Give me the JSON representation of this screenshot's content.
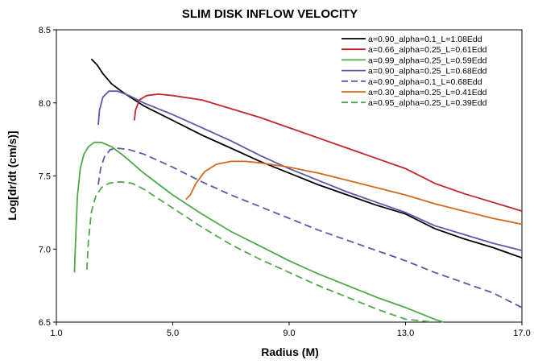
{
  "chart_data": {
    "type": "line",
    "title": "SLIM DISK INFLOW VELOCITY",
    "xlabel": "Radius (M)",
    "ylabel": "Log[dr/dt (cm/s)]",
    "xlim": [
      1.0,
      17.0
    ],
    "ylim": [
      6.5,
      8.5
    ],
    "xticks": [
      "1.0",
      "5.0",
      "9.0",
      "13.0",
      "17.0"
    ],
    "yticks": [
      "6.5",
      "7.0",
      "7.5",
      "8.0",
      "8.5"
    ],
    "grid": false,
    "legend_position": "top-right",
    "series": [
      {
        "name": "a=0.90_alpha=0.1_L=1.08Edd",
        "color": "#000000",
        "dash": false,
        "x": [
          2.2,
          2.4,
          2.6,
          2.9,
          3.3,
          4.0,
          5.0,
          6.0,
          7.0,
          8.0,
          9.0,
          10.0,
          11.0,
          12.0,
          13.0,
          14.0,
          15.0,
          16.0,
          17.0
        ],
        "y": [
          8.3,
          8.26,
          8.2,
          8.13,
          8.07,
          7.98,
          7.88,
          7.78,
          7.69,
          7.6,
          7.52,
          7.44,
          7.37,
          7.3,
          7.24,
          7.14,
          7.07,
          7.01,
          6.94
        ]
      },
      {
        "name": "a=0.66_alpha=0.25_L=0.61Edd",
        "color": "#c0272d",
        "dash": false,
        "x": [
          3.68,
          3.72,
          3.85,
          4.1,
          4.5,
          5.0,
          6.0,
          7.0,
          8.0,
          9.0,
          10.0,
          11.0,
          12.0,
          13.0,
          14.0,
          15.0,
          16.0,
          17.0
        ],
        "y": [
          7.88,
          7.95,
          8.02,
          8.05,
          8.06,
          8.05,
          8.02,
          7.96,
          7.9,
          7.83,
          7.76,
          7.69,
          7.62,
          7.55,
          7.45,
          7.38,
          7.32,
          7.26
        ]
      },
      {
        "name": "a=0.99_alpha=0.25_L=0.59Edd",
        "color": "#4fa84a",
        "dash": false,
        "x": [
          1.62,
          1.66,
          1.72,
          1.82,
          1.95,
          2.1,
          2.3,
          2.55,
          2.9,
          3.3,
          4.0,
          5.0,
          6.0,
          7.0,
          8.0,
          9.0,
          10.0,
          11.0,
          12.0,
          13.0,
          14.0,
          14.3
        ],
        "y": [
          6.84,
          7.05,
          7.35,
          7.55,
          7.65,
          7.7,
          7.73,
          7.73,
          7.7,
          7.64,
          7.52,
          7.37,
          7.24,
          7.12,
          7.02,
          6.92,
          6.83,
          6.75,
          6.67,
          6.6,
          6.52,
          6.5
        ]
      },
      {
        "name": "a=0.90_alpha=0.25_L=0.68Edd",
        "color": "#5a5aa6",
        "dash": false,
        "x": [
          2.44,
          2.48,
          2.6,
          2.8,
          3.1,
          3.5,
          4.0,
          5.0,
          6.0,
          7.0,
          8.0,
          9.0,
          10.0,
          11.0,
          12.0,
          13.0,
          14.0,
          15.0,
          16.0,
          17.0
        ],
        "y": [
          7.85,
          7.95,
          8.04,
          8.08,
          8.08,
          8.05,
          8.0,
          7.92,
          7.83,
          7.74,
          7.64,
          7.55,
          7.47,
          7.39,
          7.32,
          7.25,
          7.16,
          7.1,
          7.04,
          6.99
        ]
      },
      {
        "name": "a=0.90_alpha=0.1_L=0.68Edd",
        "color": "#5a5aa6",
        "dash": true,
        "x": [
          2.44,
          2.52,
          2.65,
          2.85,
          3.1,
          3.5,
          4.0,
          5.0,
          6.0,
          7.0,
          8.0,
          9.0,
          10.0,
          11.0,
          12.0,
          13.0,
          14.0,
          15.0,
          16.0,
          17.0
        ],
        "y": [
          7.44,
          7.55,
          7.63,
          7.68,
          7.69,
          7.68,
          7.65,
          7.56,
          7.46,
          7.37,
          7.29,
          7.21,
          7.13,
          7.06,
          6.99,
          6.92,
          6.84,
          6.77,
          6.7,
          6.6
        ]
      },
      {
        "name": "a=0.30_alpha=0.25_L=0.41Edd",
        "color": "#d2691e",
        "dash": false,
        "x": [
          5.45,
          5.6,
          5.8,
          6.1,
          6.5,
          7.0,
          7.5,
          8.0,
          9.0,
          10.0,
          11.0,
          12.0,
          13.0,
          14.0,
          15.0,
          16.0,
          17.0
        ],
        "y": [
          7.34,
          7.37,
          7.45,
          7.53,
          7.58,
          7.6,
          7.6,
          7.59,
          7.56,
          7.52,
          7.47,
          7.42,
          7.37,
          7.31,
          7.26,
          7.21,
          7.17
        ]
      },
      {
        "name": "a=0.95_alpha=0.25_L=0.39Edd",
        "color": "#4fa84a",
        "dash": true,
        "x": [
          2.05,
          2.1,
          2.2,
          2.35,
          2.55,
          2.8,
          3.2,
          3.6,
          4.0,
          5.0,
          6.0,
          7.0,
          8.0,
          9.0,
          10.0,
          11.0,
          12.0,
          13.0,
          14.0,
          14.0
        ],
        "y": [
          6.86,
          7.05,
          7.25,
          7.36,
          7.42,
          7.45,
          7.46,
          7.45,
          7.41,
          7.28,
          7.15,
          7.03,
          6.93,
          6.84,
          6.75,
          6.67,
          6.59,
          6.52,
          6.5,
          6.5
        ]
      }
    ]
  }
}
